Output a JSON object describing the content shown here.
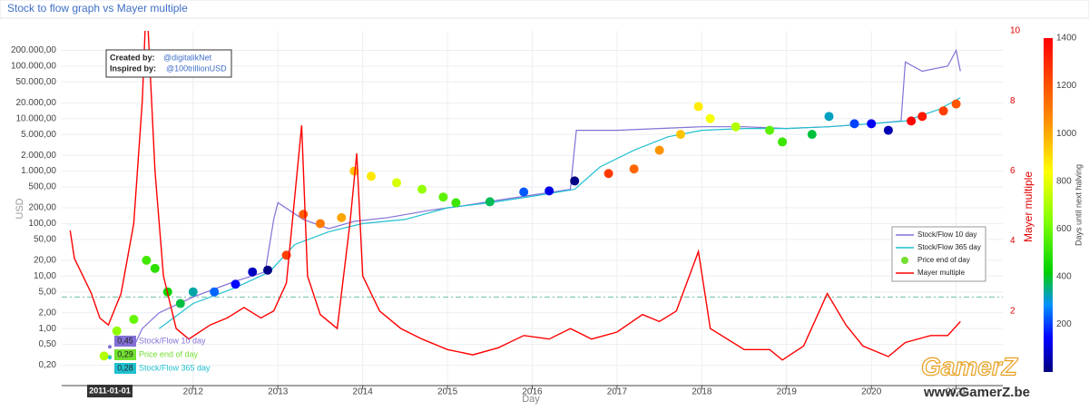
{
  "header": {
    "title": "Stock to flow graph vs Mayer multiple"
  },
  "chart_data": {
    "type": "line",
    "xlabel": "Day",
    "ylabel": "USD",
    "y2label": "Mayer multiple",
    "xlim": [
      2010.45,
      2021.55
    ],
    "xticks": [
      2012,
      2013,
      2014,
      2015,
      2016,
      2017,
      2018,
      2019,
      2020,
      2021
    ],
    "ylim": [
      0.1,
      470000
    ],
    "log_y": true,
    "yticks": [
      {
        "value": 0.2,
        "label": "0,20"
      },
      {
        "value": 0.5,
        "label": "0,50"
      },
      {
        "value": 1,
        "label": "1,00"
      },
      {
        "value": 2,
        "label": "2,00"
      },
      {
        "value": 5,
        "label": "5,00"
      },
      {
        "value": 10,
        "label": "10,00"
      },
      {
        "value": 20,
        "label": "20,00"
      },
      {
        "value": 50,
        "label": "50,00"
      },
      {
        "value": 100,
        "label": "100,00"
      },
      {
        "value": 200,
        "label": "200,00"
      },
      {
        "value": 500,
        "label": "500,00"
      },
      {
        "value": 1000,
        "label": "1.000,00"
      },
      {
        "value": 2000,
        "label": "2.000,00"
      },
      {
        "value": 5000,
        "label": "5.000,00"
      },
      {
        "value": 10000,
        "label": "10.000,00"
      },
      {
        "value": 20000,
        "label": "20.000,00"
      },
      {
        "value": 50000,
        "label": "50.000,00"
      },
      {
        "value": 100000,
        "label": "100.000,00"
      },
      {
        "value": 200000,
        "label": "200.000,00"
      }
    ],
    "y2lim": [
      0,
      10
    ],
    "y2ticks": [
      2,
      4,
      6,
      8,
      10
    ],
    "grid": true,
    "legend": "right",
    "series": [
      {
        "name": "Stock/Flow 10 day",
        "type": "line",
        "color": "#8470d6",
        "x": [
          2011.3,
          2011.4,
          2011.6,
          2012.0,
          2012.5,
          2012.85,
          2012.95,
          2013.0,
          2013.3,
          2013.6,
          2013.9,
          2014.3,
          2014.8,
          2015.2,
          2015.6,
          2016.0,
          2016.45,
          2016.52,
          2017.0,
          2017.5,
          2018.0,
          2018.5,
          2019.0,
          2019.5,
          2020.0,
          2020.35,
          2020.4,
          2020.6,
          2020.9,
          2021.0,
          2021.05
        ],
        "values": [
          0.45,
          1,
          2,
          4,
          8,
          12,
          120,
          250,
          120,
          80,
          110,
          130,
          180,
          220,
          280,
          350,
          450,
          6000,
          6000,
          6500,
          7000,
          7000,
          6500,
          7000,
          8000,
          9000,
          120000,
          80000,
          100000,
          200000,
          80000
        ]
      },
      {
        "name": "Stock/Flow 365 day",
        "type": "line",
        "color": "#20c0d0",
        "x": [
          2011.6,
          2012.0,
          2012.5,
          2012.9,
          2013.2,
          2013.6,
          2014.0,
          2014.5,
          2015.0,
          2015.5,
          2016.0,
          2016.5,
          2016.8,
          2017.2,
          2017.6,
          2018.0,
          2018.5,
          2019.0,
          2019.5,
          2020.0,
          2020.4,
          2020.8,
          2021.05
        ],
        "values": [
          1,
          3,
          6,
          12,
          40,
          70,
          100,
          120,
          200,
          250,
          330,
          450,
          1200,
          2500,
          4500,
          6000,
          6500,
          6500,
          7000,
          8000,
          9000,
          15000,
          25000
        ]
      },
      {
        "name": "Price end of day",
        "type": "scatter",
        "color": "#72e030",
        "x": [
          2010.95,
          2011.1,
          2011.3,
          2011.45,
          2011.55,
          2011.7,
          2011.85,
          2012.0,
          2012.25,
          2012.5,
          2012.7,
          2012.88,
          2013.1,
          2013.3,
          2013.5,
          2013.75,
          2013.9,
          2014.1,
          2014.4,
          2014.7,
          2014.95,
          2015.1,
          2015.5,
          2015.9,
          2016.2,
          2016.5,
          2016.9,
          2017.2,
          2017.5,
          2017.75,
          2017.96,
          2018.1,
          2018.4,
          2018.8,
          2018.95,
          2019.3,
          2019.5,
          2019.8,
          2020.0,
          2020.2,
          2020.47,
          2020.6,
          2020.85,
          2021.0
        ],
        "values": [
          0.3,
          0.9,
          1.5,
          20,
          14,
          5,
          3,
          5,
          5,
          7,
          12,
          13,
          25,
          150,
          100,
          130,
          1000,
          800,
          600,
          450,
          320,
          250,
          260,
          400,
          420,
          650,
          900,
          1100,
          2500,
          5000,
          17000,
          10000,
          7000,
          6000,
          3600,
          5000,
          11000,
          8000,
          8000,
          6000,
          9000,
          11000,
          14000,
          19000
        ],
        "color_values": [
          712,
          657,
          584,
          529,
          493,
          438,
          383,
          329,
          237,
          146,
          73,
          7,
          1248,
          1175,
          1102,
          1011,
          956,
          883,
          774,
          664,
          573,
          518,
          372,
          226,
          117,
          7,
          1263,
          1153,
          1044,
          953,
          876,
          825,
          715,
          569,
          515,
          387,
          314,
          204,
          131,
          58,
          1395,
          1341,
          1250,
          1195
        ]
      },
      {
        "name": "Mayer multiple",
        "type": "line",
        "axis": "y2",
        "color": "#ff0000",
        "x": [
          2010.55,
          2010.6,
          2010.7,
          2010.8,
          2010.9,
          2011.0,
          2011.15,
          2011.3,
          2011.4,
          2011.45,
          2011.55,
          2011.65,
          2011.8,
          2011.95,
          2012.2,
          2012.4,
          2012.6,
          2012.8,
          2012.95,
          2013.1,
          2013.28,
          2013.35,
          2013.5,
          2013.7,
          2013.85,
          2013.93,
          2014.0,
          2014.2,
          2014.45,
          2014.7,
          2015.0,
          2015.3,
          2015.6,
          2015.9,
          2016.2,
          2016.45,
          2016.7,
          2017.0,
          2017.3,
          2017.5,
          2017.7,
          2017.96,
          2018.1,
          2018.5,
          2018.8,
          2018.95,
          2019.2,
          2019.48,
          2019.7,
          2019.9,
          2020.2,
          2020.4,
          2020.7,
          2020.9,
          2021.05
        ],
        "values": [
          4.3,
          3.5,
          3.0,
          2.5,
          1.8,
          1.6,
          2.5,
          4.5,
          8,
          11,
          6,
          3,
          1.5,
          1.2,
          1.6,
          1.8,
          2.1,
          1.8,
          2.0,
          2.8,
          7.3,
          3,
          1.9,
          1.5,
          4.5,
          6.5,
          3,
          2,
          1.5,
          1.2,
          0.9,
          0.75,
          0.95,
          1.3,
          1.2,
          1.5,
          1.2,
          1.4,
          1.9,
          1.7,
          2.0,
          3.7,
          1.5,
          0.9,
          0.9,
          0.6,
          1.0,
          2.5,
          1.6,
          1.0,
          0.7,
          1.1,
          1.3,
          1.3,
          1.7
        ]
      }
    ],
    "colorbar": {
      "title": "Days until next halving",
      "clim": [
        0,
        1400
      ],
      "ticks": [
        200,
        400,
        600,
        800,
        1000,
        1200,
        1400
      ],
      "colorscale": [
        [
          0,
          "#00007f"
        ],
        [
          0.1,
          "#0000ff"
        ],
        [
          0.2,
          "#0090ff"
        ],
        [
          0.3,
          "#00d000"
        ],
        [
          0.45,
          "#80ff00"
        ],
        [
          0.6,
          "#ffff00"
        ],
        [
          0.75,
          "#ff9000"
        ],
        [
          1,
          "#ff0000"
        ]
      ]
    },
    "threshold": {
      "axis": "y2",
      "value": 2.4,
      "color": "#6fbfa0"
    },
    "annotation": {
      "created_label": "Created by:",
      "created_value": "@digitalikNet",
      "inspired_label": "Inspired by:",
      "inspired_value": "@100trillionUSD"
    },
    "hover": {
      "x": "2011-01-01",
      "items": [
        {
          "name": "Stock/Flow 10 day",
          "value": 0.45,
          "value_label": "0,45",
          "color": "#8470d6"
        },
        {
          "name": "Price end of day",
          "value": 0.29,
          "value_label": "0,29",
          "color": "#72e030"
        },
        {
          "name": "Stock/Flow 365 day",
          "value": 0.28,
          "value_label": "0,28",
          "color": "#20c0d0"
        }
      ]
    }
  },
  "watermark": {
    "logo": "GamerZ",
    "url": "www.GamerZ.be"
  }
}
